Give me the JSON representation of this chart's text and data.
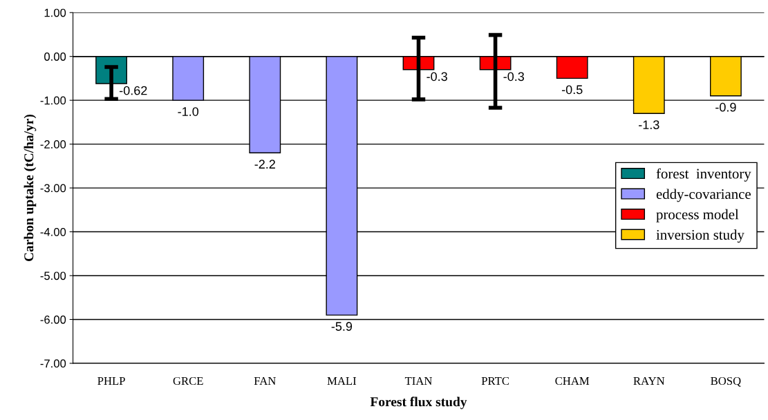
{
  "chart_data": {
    "type": "bar",
    "xlabel": "Forest flux study",
    "ylabel": "Carbon uptake (tC/ha/yr)",
    "categories": [
      "PHLP",
      "GRCE",
      "FAN",
      "MALI",
      "TIAN",
      "PRTC",
      "CHAM",
      "RAYN",
      "BOSQ"
    ],
    "series": [
      {
        "name": "forest  inventory",
        "color": "#008080",
        "values": [
          -0.62,
          null,
          null,
          null,
          null,
          null,
          null,
          null,
          null
        ],
        "value_labels": [
          "-0.62",
          null,
          null,
          null,
          null,
          null,
          null,
          null,
          null
        ],
        "errors": [
          [
            -0.97,
            -0.24
          ],
          null,
          null,
          null,
          null,
          null,
          null,
          null,
          null
        ]
      },
      {
        "name": "eddy-covariance",
        "color": "#9999ff",
        "values": [
          null,
          -1.0,
          -2.2,
          -5.9,
          null,
          null,
          null,
          null,
          null
        ],
        "value_labels": [
          null,
          "-1.0",
          "-2.2",
          "-5.9",
          null,
          null,
          null,
          null,
          null
        ]
      },
      {
        "name": "process model",
        "color": "#ff0000",
        "values": [
          null,
          null,
          null,
          null,
          -0.3,
          -0.3,
          -0.5,
          null,
          null
        ],
        "value_labels": [
          null,
          null,
          null,
          null,
          "-0.3",
          "-0.3",
          "-0.5",
          null,
          null
        ],
        "errors": [
          null,
          null,
          null,
          null,
          [
            -0.98,
            0.43
          ],
          [
            -1.17,
            0.49
          ],
          null,
          null,
          null
        ]
      },
      {
        "name": "inversion study",
        "color": "#ffcc00",
        "values": [
          null,
          null,
          null,
          null,
          null,
          null,
          null,
          -1.3,
          -0.9
        ],
        "value_labels": [
          null,
          null,
          null,
          null,
          null,
          null,
          null,
          "-1.3",
          "-0.9"
        ]
      }
    ],
    "ylim": [
      -7,
      1
    ],
    "yticks": [
      {
        "value": -7,
        "label": "-7.00"
      },
      {
        "value": -6,
        "label": "-6.00"
      },
      {
        "value": -5,
        "label": "-5.00"
      },
      {
        "value": -4,
        "label": "-4.00"
      },
      {
        "value": -3,
        "label": "-3.00"
      },
      {
        "value": -2,
        "label": "-2.00"
      },
      {
        "value": -1,
        "label": "-1.00"
      },
      {
        "value": 0,
        "label": "0.00"
      },
      {
        "value": 1,
        "label": "1.00"
      }
    ],
    "grid": "y",
    "legend": "right"
  }
}
